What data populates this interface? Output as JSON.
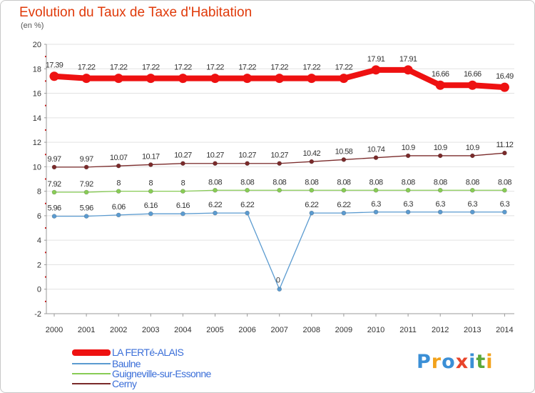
{
  "title": "Evolution du Taux de Taxe d'Habitation",
  "unit_label": "(en %)",
  "brand": {
    "letters": [
      {
        "ch": "P",
        "color": "#3b8fd6"
      },
      {
        "ch": "r",
        "color": "#f2a21b"
      },
      {
        "ch": "o",
        "color": "#3b8fd6"
      },
      {
        "ch": "x",
        "color": "#e8442a"
      },
      {
        "ch": "i",
        "color": "#3b8fd6"
      },
      {
        "ch": "t",
        "color": "#5aa83a"
      },
      {
        "ch": "i",
        "color": "#f2a21b"
      }
    ]
  },
  "chart_data": {
    "type": "line",
    "title": "Evolution du Taux de Taxe d'Habitation",
    "ylabel": "(en %)",
    "xlabel": "",
    "ylim": [
      -2,
      20
    ],
    "yticks": [
      -2,
      0,
      2,
      4,
      6,
      8,
      10,
      12,
      14,
      16,
      18,
      20
    ],
    "grid": "horizontal",
    "legend_position": "bottom-left",
    "x": [
      "2000",
      "2001",
      "2002",
      "2003",
      "2004",
      "2005",
      "2006",
      "2007",
      "2008",
      "2009",
      "2010",
      "2011",
      "2012",
      "2013",
      "2014"
    ],
    "series": [
      {
        "name": "LA FERTé-ALAIS",
        "color": "#ee1111",
        "values": [
          17.39,
          17.22,
          17.22,
          17.22,
          17.22,
          17.22,
          17.22,
          17.22,
          17.22,
          17.22,
          17.91,
          17.91,
          16.66,
          16.66,
          16.49
        ],
        "labels": [
          "17.39",
          "17.22",
          "17.22",
          "17.22",
          "17.22",
          "17.22",
          "17.22",
          "17.22",
          "17.22",
          "17.22",
          "17.91",
          "17.91",
          "16.66",
          "16.66",
          "16.49"
        ]
      },
      {
        "name": "Baulne",
        "color": "#5b9bd0",
        "values": [
          5.96,
          5.96,
          6.06,
          6.16,
          6.16,
          6.22,
          6.22,
          0,
          6.22,
          6.22,
          6.3,
          6.3,
          6.3,
          6.3,
          6.3
        ],
        "labels": [
          "5.96",
          "5.96",
          "6.06",
          "6.16",
          "6.16",
          "6.22",
          "6.22",
          "0",
          "6.22",
          "6.22",
          "6.3",
          "6.3",
          "6.3",
          "6.3",
          "6.3"
        ]
      },
      {
        "name": "Guigneville-sur-Essonne",
        "color": "#88cc55",
        "values": [
          7.92,
          7.92,
          8,
          8,
          8,
          8.08,
          8.08,
          8.08,
          8.08,
          8.08,
          8.08,
          8.08,
          8.08,
          8.08,
          8.08
        ],
        "labels": [
          "7.92",
          "7.92",
          "8",
          "8",
          "8",
          "8.08",
          "8.08",
          "8.08",
          "8.08",
          "8.08",
          "8.08",
          "8.08",
          "8.08",
          "8.08",
          "8.08"
        ]
      },
      {
        "name": "Cerny",
        "color": "#7a2a2a",
        "values": [
          9.97,
          9.97,
          10.07,
          10.17,
          10.27,
          10.27,
          10.27,
          10.27,
          10.42,
          10.58,
          10.74,
          10.9,
          10.9,
          10.9,
          11.12
        ],
        "labels": [
          "9.97",
          "9.97",
          "10.07",
          "10.17",
          "10.27",
          "10.27",
          "10.27",
          "10.27",
          "10.42",
          "10.58",
          "10.74",
          "10.9",
          "10.9",
          "10.9",
          "11.12"
        ]
      }
    ]
  }
}
